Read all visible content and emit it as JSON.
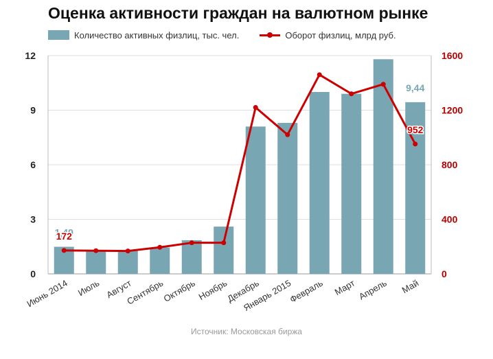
{
  "chart_data": {
    "type": "bar",
    "title": "Оценка активности граждан на валютном рынке",
    "source": "Источник: Московская биржа",
    "categories": [
      "Июнь 2014",
      "Июль",
      "Август",
      "Сентябрь",
      "Октябрь",
      "Ноябрь",
      "Декабрь",
      "Январь 2015",
      "Февраль",
      "Март",
      "Апрель",
      "Май"
    ],
    "series": [
      {
        "name": "Количество активных физлиц, тыс. чел.",
        "type": "bar",
        "axis": "left",
        "values": [
          1.49,
          1.3,
          1.3,
          1.45,
          1.85,
          2.6,
          8.1,
          8.3,
          10.0,
          9.9,
          11.8,
          9.44
        ],
        "data_labels": [
          "1,49",
          "",
          "",
          "",
          "",
          "",
          "",
          "",
          "",
          "",
          "",
          "9,44"
        ]
      },
      {
        "name": "Оборот физлиц, млрд руб.",
        "type": "line",
        "axis": "right",
        "values": [
          172,
          170,
          168,
          195,
          228,
          228,
          1220,
          1020,
          1460,
          1320,
          1390,
          952
        ],
        "data_labels": [
          "172",
          "",
          "",
          "",
          "",
          "",
          "",
          "",
          "",
          "",
          "",
          "952"
        ]
      }
    ],
    "ylim_left": [
      0,
      12
    ],
    "yticks_left": [
      "0",
      "3",
      "6",
      "9",
      "12"
    ],
    "ylim_right": [
      0,
      1600
    ],
    "yticks_right": [
      "0",
      "400",
      "800",
      "1200",
      "1600"
    ],
    "grid": true,
    "legend_position": "top",
    "colors": {
      "bar": "#79a6b3",
      "line": "#cc0000",
      "right_axis": "#b30000",
      "left_axis": "#222222",
      "grid": "#dedede"
    }
  }
}
